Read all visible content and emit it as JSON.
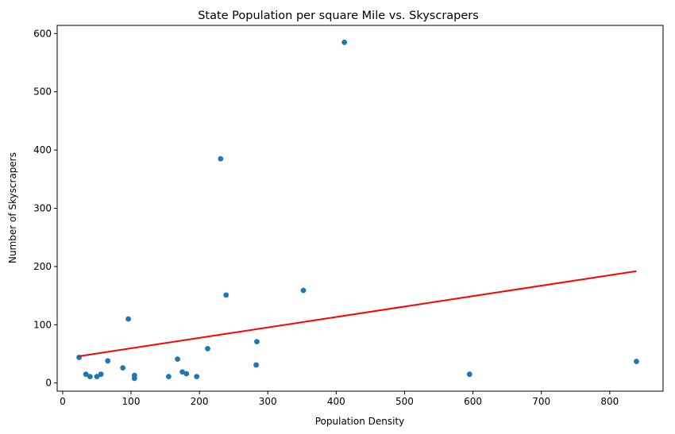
{
  "chart_data": {
    "type": "scatter",
    "title": "State Population per square Mile vs. Skyscrapers",
    "xlabel": "Population Density",
    "ylabel": "Number of Skyscrapers",
    "xlim": [
      -8,
      878
    ],
    "ylim": [
      -14,
      614
    ],
    "xticks": [
      0,
      100,
      200,
      300,
      400,
      500,
      600,
      700,
      800
    ],
    "yticks": [
      0,
      100,
      200,
      300,
      400,
      500,
      600
    ],
    "grid": false,
    "point_color": "#1f77b4",
    "line_color": "#ff0000",
    "points": [
      {
        "x": 24,
        "y": 44
      },
      {
        "x": 34,
        "y": 15
      },
      {
        "x": 40,
        "y": 11
      },
      {
        "x": 50,
        "y": 11
      },
      {
        "x": 56,
        "y": 15
      },
      {
        "x": 66,
        "y": 38
      },
      {
        "x": 88,
        "y": 26
      },
      {
        "x": 96,
        "y": 110
      },
      {
        "x": 105,
        "y": 13
      },
      {
        "x": 105,
        "y": 8
      },
      {
        "x": 155,
        "y": 11
      },
      {
        "x": 168,
        "y": 41
      },
      {
        "x": 175,
        "y": 19
      },
      {
        "x": 181,
        "y": 16
      },
      {
        "x": 196,
        "y": 11
      },
      {
        "x": 212,
        "y": 59
      },
      {
        "x": 231,
        "y": 385
      },
      {
        "x": 239,
        "y": 151
      },
      {
        "x": 283,
        "y": 31
      },
      {
        "x": 284,
        "y": 71
      },
      {
        "x": 352,
        "y": 159
      },
      {
        "x": 412,
        "y": 585
      },
      {
        "x": 595,
        "y": 15
      },
      {
        "x": 839,
        "y": 37
      }
    ],
    "regression": {
      "x": [
        24,
        839
      ],
      "y": [
        46,
        192
      ]
    }
  }
}
